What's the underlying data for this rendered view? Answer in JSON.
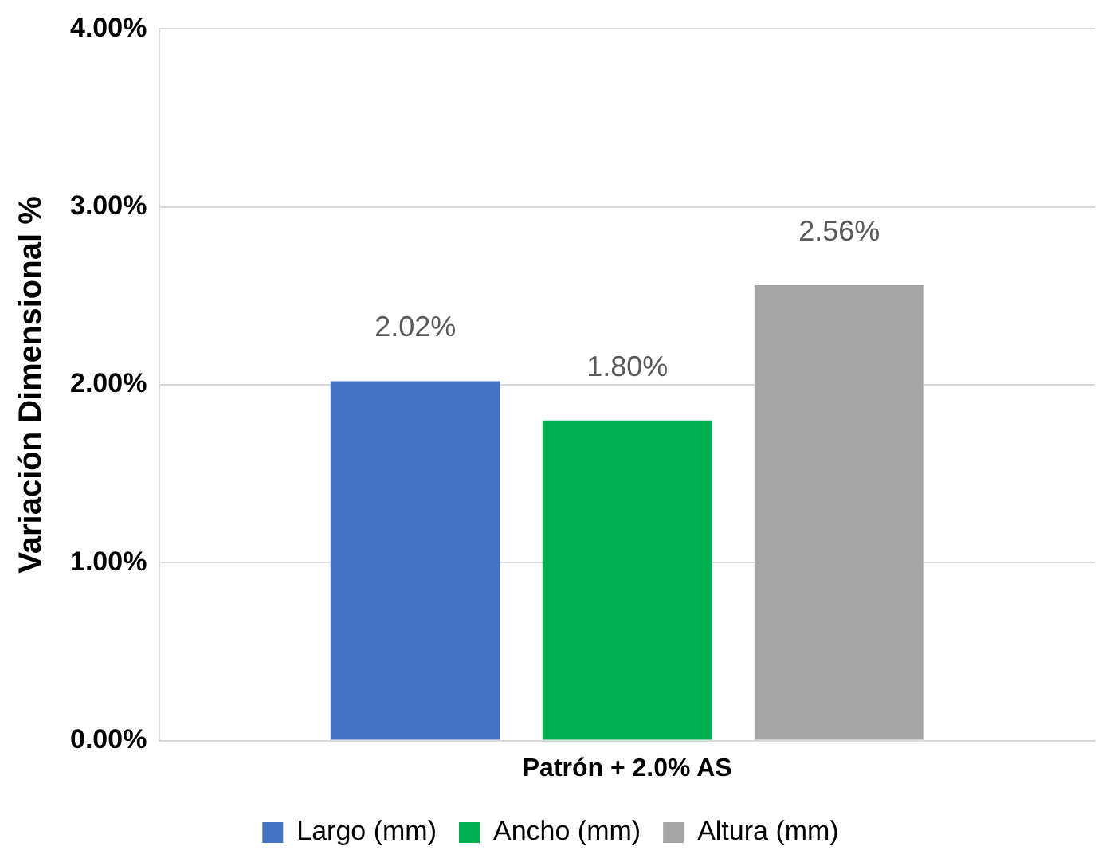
{
  "chart_data": {
    "type": "bar",
    "categories": [
      "Patrón + 2.0% AS"
    ],
    "series": [
      {
        "name": "Largo (mm)",
        "color": "#4472c4",
        "values": [
          2.02
        ],
        "value_labels": [
          "2.02%"
        ]
      },
      {
        "name": "Ancho (mm)",
        "color": "#00b050",
        "values": [
          1.8
        ],
        "value_labels": [
          "1.80%"
        ]
      },
      {
        "name": "Altura (mm)",
        "color": "#a5a5a5",
        "values": [
          2.56
        ],
        "value_labels": [
          "2.56%"
        ]
      }
    ],
    "ylabel": "Variación Dimensional %",
    "ylim": [
      0,
      4
    ],
    "yticks": [
      {
        "value": 0,
        "label": "0.00%"
      },
      {
        "value": 1,
        "label": "1.00%"
      },
      {
        "value": 2,
        "label": "2.00%"
      },
      {
        "value": 3,
        "label": "3.00%"
      },
      {
        "value": 4,
        "label": "4.00%"
      }
    ],
    "grid": "y",
    "legend": "bottom"
  }
}
